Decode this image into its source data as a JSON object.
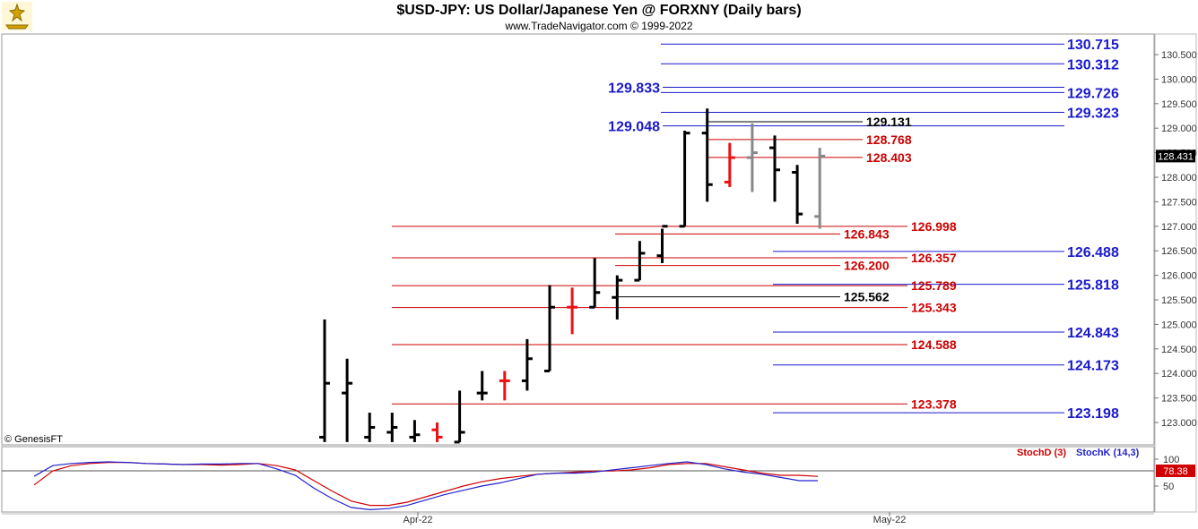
{
  "header": {
    "title": "$USD-JPY:  US Dollar/Japanese Yen @ FORXNY  (Daily bars)",
    "subtitle": "www.TradeNavigator.com © 1999-2022"
  },
  "watermark": {
    "text": "© GenesisFT",
    "logo_icon": "genesis-gold-logo-icon"
  },
  "colors": {
    "up_bar": "#000000",
    "down_bar": "#ee1111",
    "pending_bar": "#888888",
    "blue_level": "#1a1acc",
    "red_level": "#cc0000",
    "black_level": "#000000",
    "stochD": "#d00000",
    "stochK": "#2222cc"
  },
  "chart_data": [
    {
      "type": "ohlc",
      "ylim": [
        122.6,
        130.8
      ],
      "y_ticks": [
        "123.000",
        "123.500",
        "124.000",
        "124.500",
        "125.000",
        "125.500",
        "126.000",
        "126.500",
        "127.000",
        "127.500",
        "128.000",
        "128.500",
        "129.000",
        "129.500",
        "130.000",
        "130.500"
      ],
      "x_tick_labels": [
        "Apr-22",
        "May-22"
      ],
      "last_price_label": "128.431",
      "last_price": 128.431,
      "bars": [
        {
          "o": 122.7,
          "h": 125.1,
          "l": 122.6,
          "c": 123.8,
          "color": "up"
        },
        {
          "o": 123.6,
          "h": 124.3,
          "l": 122.6,
          "c": 123.8,
          "color": "up"
        },
        {
          "o": 122.7,
          "h": 123.2,
          "l": 122.6,
          "c": 122.9,
          "color": "up"
        },
        {
          "o": 122.8,
          "h": 123.2,
          "l": 122.6,
          "c": 122.9,
          "color": "up"
        },
        {
          "o": 122.7,
          "h": 123.05,
          "l": 122.6,
          "c": 122.75,
          "color": "up"
        },
        {
          "o": 122.85,
          "h": 123.0,
          "l": 122.6,
          "c": 122.7,
          "color": "down"
        },
        {
          "o": 122.6,
          "h": 123.65,
          "l": 122.6,
          "c": 122.8,
          "color": "up"
        },
        {
          "o": 123.6,
          "h": 124.05,
          "l": 123.45,
          "c": 123.6,
          "color": "up"
        },
        {
          "o": 123.85,
          "h": 124.05,
          "l": 123.45,
          "c": 123.85,
          "color": "down"
        },
        {
          "o": 123.85,
          "h": 124.7,
          "l": 123.65,
          "c": 124.3,
          "color": "up"
        },
        {
          "o": 124.05,
          "h": 125.8,
          "l": 124.05,
          "c": 125.35,
          "color": "up"
        },
        {
          "o": 125.35,
          "h": 125.75,
          "l": 124.8,
          "c": 125.35,
          "color": "down"
        },
        {
          "o": 125.35,
          "h": 126.35,
          "l": 125.35,
          "c": 125.65,
          "color": "up"
        },
        {
          "o": 125.55,
          "h": 126.0,
          "l": 125.1,
          "c": 125.9,
          "color": "up"
        },
        {
          "o": 125.9,
          "h": 126.7,
          "l": 125.9,
          "c": 126.45,
          "color": "up"
        },
        {
          "o": 126.4,
          "h": 126.95,
          "l": 126.25,
          "c": 127.0,
          "color": "up"
        },
        {
          "o": 127.0,
          "h": 128.95,
          "l": 127.0,
          "c": 128.9,
          "color": "up"
        },
        {
          "o": 128.9,
          "h": 129.4,
          "l": 127.5,
          "c": 127.85,
          "color": "up"
        },
        {
          "o": 127.9,
          "h": 128.7,
          "l": 127.8,
          "c": 128.4,
          "color": "down"
        },
        {
          "o": 128.4,
          "h": 129.1,
          "l": 127.7,
          "c": 128.5,
          "color": "pending"
        },
        {
          "o": 128.6,
          "h": 128.85,
          "l": 127.5,
          "c": 128.15,
          "color": "up"
        },
        {
          "o": 128.1,
          "h": 128.25,
          "l": 127.05,
          "c": 127.25,
          "color": "up"
        },
        {
          "o": 127.2,
          "h": 128.6,
          "l": 126.95,
          "c": 128.43,
          "color": "pending"
        }
      ],
      "levels_right_blue": [
        "130.715",
        "130.312",
        "129.726",
        "129.323",
        "126.488",
        "125.818",
        "124.843",
        "124.173",
        "123.198"
      ],
      "levels_right_blue_values": [
        130.715,
        130.312,
        129.726,
        129.323,
        126.488,
        125.818,
        124.843,
        124.173,
        123.198
      ],
      "levels_left_blue": [
        "129.833",
        "129.048"
      ],
      "levels_left_blue_values": [
        129.833,
        129.048
      ],
      "levels_mid_black": [
        "129.131",
        "125.562"
      ],
      "levels_mid_black_values": [
        129.131,
        125.562
      ],
      "levels_red_long": [
        "126.998",
        "126.357",
        "125.789",
        "125.343",
        "124.588",
        "123.378"
      ],
      "levels_red_long_values": [
        126.998,
        126.357,
        125.789,
        125.343,
        124.588,
        123.378
      ],
      "levels_red_short": [
        "128.768",
        "128.403",
        "126.843",
        "126.200"
      ],
      "levels_red_short_values": [
        128.768,
        128.403,
        126.843,
        126.2
      ]
    },
    {
      "type": "line",
      "ylim": [
        0,
        100
      ],
      "y_ticks": [
        "100",
        "50"
      ],
      "series": [
        {
          "name": "StochD (3)",
          "color": "#d00000",
          "values": [
            52,
            78,
            88,
            92,
            94,
            94,
            92,
            91,
            90,
            90,
            89,
            90,
            92,
            88,
            80,
            60,
            40,
            22,
            14,
            14,
            20,
            30,
            40,
            50,
            58,
            64,
            68,
            72,
            74,
            76,
            78,
            78,
            80,
            84,
            90,
            92,
            92,
            86,
            80,
            74,
            70,
            70,
            68
          ]
        },
        {
          "name": "StochK (14,3)",
          "color": "#2222cc",
          "values": [
            68,
            88,
            92,
            94,
            95,
            94,
            92,
            91,
            90,
            91,
            91,
            92,
            92,
            82,
            70,
            46,
            26,
            10,
            6,
            8,
            14,
            24,
            34,
            42,
            50,
            56,
            64,
            72,
            74,
            74,
            76,
            80,
            84,
            88,
            92,
            95,
            90,
            82,
            76,
            72,
            66,
            60,
            60
          ]
        }
      ],
      "last_value_label": "78.38"
    }
  ]
}
